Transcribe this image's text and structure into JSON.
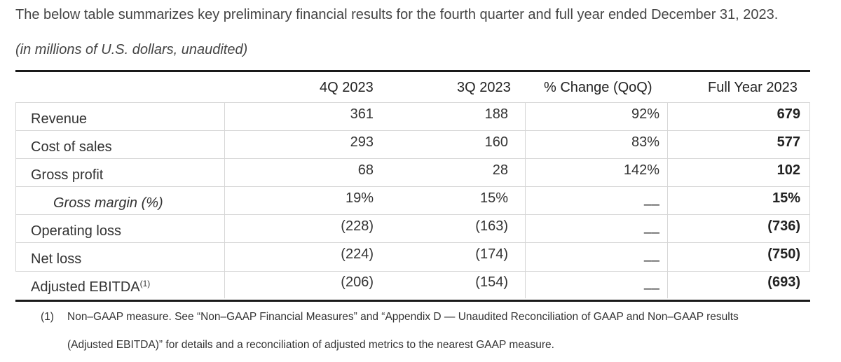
{
  "intro": {
    "text": "The below table summarizes key preliminary financial results for the fourth quarter and full year ended December 31, 2023.",
    "units": "(in millions of U.S. dollars, unaudited)"
  },
  "table": {
    "headers": [
      "4Q 2023",
      "3Q 2023",
      "% Change (QoQ)",
      "Full Year 2023"
    ],
    "rows": [
      {
        "label": "Revenue",
        "q4": "361",
        "q3": "188",
        "change": "92%",
        "fy": "679"
      },
      {
        "label": "Cost of sales",
        "q4": "293",
        "q3": "160",
        "change": "83%",
        "fy": "577"
      },
      {
        "label": "Gross profit",
        "q4": "68",
        "q3": "28",
        "change": "142%",
        "fy": "102"
      },
      {
        "label": "Gross margin (%)",
        "q4": "19%",
        "q3": "15%",
        "change": "––",
        "fy": "15%"
      },
      {
        "label": "Operating loss",
        "q4": "(228)",
        "q3": "(163)",
        "change": "––",
        "fy": "(736)"
      },
      {
        "label": "Net loss",
        "q4": "(224)",
        "q3": "(174)",
        "change": "––",
        "fy": "(750)"
      },
      {
        "label": "Adjusted EBITDA",
        "label_sup": "(1)",
        "q4": "(206)",
        "q3": "(154)",
        "change": "––",
        "fy": "(693)"
      }
    ]
  },
  "footnote": {
    "marker": "(1)",
    "line1": "Non–GAAP measure. See “Non–GAAP Financial Measures” and “Appendix D — Unaudited Reconciliation of GAAP and Non–GAAP results",
    "line2": "(Adjusted EBITDA)” for details and a reconciliation of adjusted metrics to the nearest GAAP measure."
  }
}
